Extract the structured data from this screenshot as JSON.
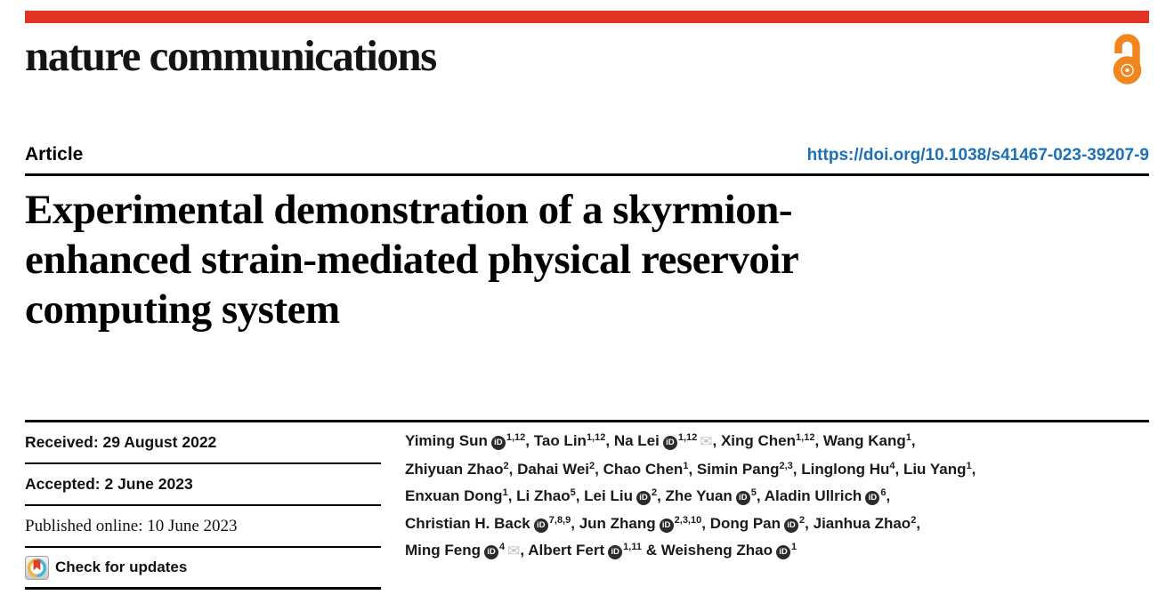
{
  "masthead": {
    "journal_name": "nature communications",
    "brand_red": "#e23425",
    "open_access_color": "#f0861d"
  },
  "header": {
    "article_type": "Article",
    "doi_text": "https://doi.org/10.1038/s41467-023-39207-9",
    "doi_color": "#1d70b7"
  },
  "title": {
    "full": "Experimental demonstration of a skyrmion-enhanced strain-mediated physical reservoir computing system",
    "lines": [
      "Experimental demonstration of a skyrmion-",
      "enhanced strain-mediated physical reservoir",
      "computing system"
    ]
  },
  "meta": {
    "received": "Received: 29 August 2022",
    "accepted": "Accepted: 2 June 2023",
    "published": "Published online: 10 June 2023",
    "check_updates_label": "Check for updates"
  },
  "icons": {
    "orcid_label": "iD",
    "envelope_glyph": "✉",
    "open_access": "open-access-padlock",
    "check_updates": "crossmark-badge"
  },
  "authors": {
    "list": [
      {
        "name": "Yiming Sun",
        "orcid": true,
        "sup": "1,12",
        "envelope": false,
        "sep": ", ",
        "break_after": false
      },
      {
        "name": "Tao Lin",
        "orcid": false,
        "sup": "1,12",
        "envelope": false,
        "sep": ", ",
        "break_after": false
      },
      {
        "name": "Na Lei",
        "orcid": true,
        "sup": "1,12",
        "envelope": true,
        "sep": ", ",
        "break_after": false
      },
      {
        "name": "Xing Chen",
        "orcid": false,
        "sup": "1,12",
        "envelope": false,
        "sep": ", ",
        "break_after": false
      },
      {
        "name": "Wang Kang",
        "orcid": false,
        "sup": "1",
        "envelope": false,
        "sep": ",",
        "break_after": true
      },
      {
        "name": "Zhiyuan Zhao",
        "orcid": false,
        "sup": "2",
        "envelope": false,
        "sep": ", ",
        "break_after": false
      },
      {
        "name": "Dahai Wei",
        "orcid": false,
        "sup": "2",
        "envelope": false,
        "sep": ", ",
        "break_after": false
      },
      {
        "name": "Chao Chen",
        "orcid": false,
        "sup": "1",
        "envelope": false,
        "sep": ", ",
        "break_after": false
      },
      {
        "name": "Simin Pang",
        "orcid": false,
        "sup": "2,3",
        "envelope": false,
        "sep": ", ",
        "break_after": false
      },
      {
        "name": "Linglong Hu",
        "orcid": false,
        "sup": "4",
        "envelope": false,
        "sep": ", ",
        "break_after": false
      },
      {
        "name": "Liu Yang",
        "orcid": false,
        "sup": "1",
        "envelope": false,
        "sep": ",",
        "break_after": true
      },
      {
        "name": "Enxuan Dong",
        "orcid": false,
        "sup": "1",
        "envelope": false,
        "sep": ", ",
        "break_after": false
      },
      {
        "name": "Li Zhao",
        "orcid": false,
        "sup": "5",
        "envelope": false,
        "sep": ", ",
        "break_after": false
      },
      {
        "name": "Lei Liu",
        "orcid": true,
        "sup": "2",
        "envelope": false,
        "sep": ", ",
        "break_after": false
      },
      {
        "name": "Zhe Yuan",
        "orcid": true,
        "sup": "5",
        "envelope": false,
        "sep": ", ",
        "break_after": false
      },
      {
        "name": "Aladin Ullrich",
        "orcid": true,
        "sup": "6",
        "envelope": false,
        "sep": ",",
        "break_after": true
      },
      {
        "name": "Christian H. Back",
        "orcid": true,
        "sup": "7,8,9",
        "envelope": false,
        "sep": ", ",
        "break_after": false
      },
      {
        "name": "Jun Zhang",
        "orcid": true,
        "sup": "2,3,10",
        "envelope": false,
        "sep": ", ",
        "break_after": false
      },
      {
        "name": "Dong Pan",
        "orcid": true,
        "sup": "2",
        "envelope": false,
        "sep": ", ",
        "break_after": false
      },
      {
        "name": "Jianhua Zhao",
        "orcid": false,
        "sup": "2",
        "envelope": false,
        "sep": ",",
        "break_after": true
      },
      {
        "name": "Ming Feng",
        "orcid": true,
        "sup": "4",
        "envelope": true,
        "sep": ", ",
        "break_after": false
      },
      {
        "name": "Albert Fert",
        "orcid": true,
        "sup": "1,11",
        "envelope": false,
        "sep": " & ",
        "break_after": false
      },
      {
        "name": "Weisheng Zhao",
        "orcid": true,
        "sup": "1",
        "envelope": false,
        "sep": "",
        "break_after": false
      }
    ]
  }
}
